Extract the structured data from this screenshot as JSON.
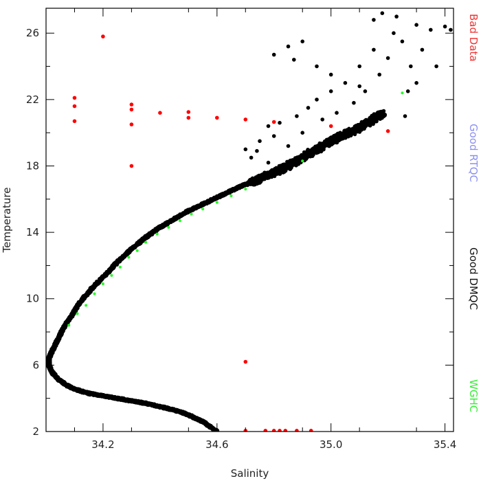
{
  "chart_data": {
    "type": "scatter",
    "title": "",
    "xlabel": "Salinity",
    "ylabel": "Temperature",
    "xlim": [
      34.0,
      35.43
    ],
    "ylim": [
      2,
      27.5
    ],
    "x_ticks": [
      34.2,
      34.6,
      35.0,
      35.4
    ],
    "x_tick_labels": [
      "34.2",
      "34.6",
      "35.0",
      "35.4"
    ],
    "y_ticks": [
      2,
      6,
      10,
      14,
      18,
      22,
      26
    ],
    "y_tick_labels": [
      "2",
      "6",
      "10",
      "14",
      "18",
      "22",
      "26"
    ],
    "grid": false,
    "legend_position": "right-vertical",
    "legend": [
      {
        "name": "Bad Data",
        "color": "#ee3333"
      },
      {
        "name": "Good RTQC",
        "color": "#8a8ff0"
      },
      {
        "name": "Good DMQC",
        "color": "#111111"
      },
      {
        "name": "WGHC",
        "color": "#33ee33"
      }
    ],
    "series": [
      {
        "name": "Good DMQC",
        "color": "#000000",
        "curve": [
          [
            34.6,
            2.0
          ],
          [
            34.55,
            2.6
          ],
          [
            34.5,
            3.0
          ],
          [
            34.45,
            3.3
          ],
          [
            34.4,
            3.5
          ],
          [
            34.35,
            3.7
          ],
          [
            34.3,
            3.85
          ],
          [
            34.25,
            4.0
          ],
          [
            34.2,
            4.15
          ],
          [
            34.15,
            4.3
          ],
          [
            34.1,
            4.55
          ],
          [
            34.07,
            4.8
          ],
          [
            34.04,
            5.2
          ],
          [
            34.02,
            5.6
          ],
          [
            34.01,
            6.0
          ],
          [
            34.01,
            6.4
          ],
          [
            34.02,
            6.8
          ],
          [
            34.04,
            7.5
          ],
          [
            34.06,
            8.2
          ],
          [
            34.09,
            9.0
          ],
          [
            34.12,
            9.8
          ],
          [
            34.16,
            10.6
          ],
          [
            34.2,
            11.3
          ],
          [
            34.25,
            12.2
          ],
          [
            34.3,
            13.0
          ],
          [
            34.35,
            13.7
          ],
          [
            34.4,
            14.3
          ],
          [
            34.45,
            14.8
          ],
          [
            34.5,
            15.3
          ],
          [
            34.55,
            15.7
          ],
          [
            34.6,
            16.1
          ],
          [
            34.65,
            16.5
          ],
          [
            34.7,
            16.9
          ],
          [
            34.75,
            17.2
          ],
          [
            34.8,
            17.6
          ],
          [
            34.85,
            18.0
          ],
          [
            34.9,
            18.5
          ],
          [
            34.95,
            19.0
          ],
          [
            35.0,
            19.5
          ],
          [
            35.05,
            19.9
          ],
          [
            35.1,
            20.3
          ],
          [
            35.15,
            20.8
          ],
          [
            35.18,
            21.2
          ]
        ],
        "scatter": [
          [
            34.7,
            19.0
          ],
          [
            34.72,
            18.5
          ],
          [
            34.75,
            19.5
          ],
          [
            34.78,
            18.2
          ],
          [
            34.8,
            19.8
          ],
          [
            34.82,
            20.6
          ],
          [
            34.85,
            19.2
          ],
          [
            34.88,
            21.0
          ],
          [
            34.9,
            20.0
          ],
          [
            34.92,
            21.5
          ],
          [
            34.95,
            22.0
          ],
          [
            34.97,
            20.8
          ],
          [
            35.0,
            22.5
          ],
          [
            35.02,
            21.2
          ],
          [
            35.05,
            23.0
          ],
          [
            35.08,
            21.8
          ],
          [
            35.1,
            24.0
          ],
          [
            35.12,
            22.5
          ],
          [
            35.15,
            25.0
          ],
          [
            35.17,
            23.5
          ],
          [
            35.2,
            24.5
          ],
          [
            35.22,
            26.0
          ],
          [
            35.25,
            25.5
          ],
          [
            35.28,
            24.0
          ],
          [
            35.3,
            26.5
          ],
          [
            35.32,
            25.0
          ],
          [
            35.35,
            26.2
          ],
          [
            34.8,
            24.7
          ],
          [
            34.87,
            24.4
          ],
          [
            34.95,
            24.0
          ],
          [
            35.18,
            27.2
          ],
          [
            35.23,
            27.0
          ],
          [
            35.3,
            23.0
          ],
          [
            35.27,
            22.5
          ],
          [
            35.26,
            21.0
          ],
          [
            35.4,
            26.4
          ],
          [
            35.42,
            26.2
          ],
          [
            35.37,
            24.0
          ],
          [
            34.85,
            25.2
          ],
          [
            34.9,
            25.5
          ],
          [
            35.0,
            23.5
          ],
          [
            35.1,
            22.8
          ],
          [
            35.15,
            26.8
          ],
          [
            34.78,
            20.4
          ],
          [
            34.74,
            18.9
          ]
        ]
      },
      {
        "name": "Bad Data",
        "color": "#ff0000",
        "points": [
          [
            34.1,
            22.1
          ],
          [
            34.1,
            21.6
          ],
          [
            34.1,
            20.7
          ],
          [
            34.2,
            25.8
          ],
          [
            34.3,
            21.7
          ],
          [
            34.3,
            21.4
          ],
          [
            34.3,
            20.5
          ],
          [
            34.3,
            18.0
          ],
          [
            34.4,
            21.2
          ],
          [
            34.5,
            21.25
          ],
          [
            34.5,
            20.9
          ],
          [
            34.6,
            20.9
          ],
          [
            34.7,
            20.8
          ],
          [
            34.8,
            20.65
          ],
          [
            35.0,
            20.4
          ],
          [
            35.2,
            20.1
          ],
          [
            34.7,
            6.2
          ],
          [
            34.7,
            2.05
          ],
          [
            34.77,
            2.05
          ],
          [
            34.8,
            2.05
          ],
          [
            34.82,
            2.05
          ],
          [
            34.84,
            2.05
          ],
          [
            34.88,
            2.05
          ],
          [
            34.93,
            2.05
          ]
        ]
      },
      {
        "name": "WGHC",
        "color": "#22ff22",
        "points": [
          [
            34.08,
            8.4
          ],
          [
            34.11,
            9.1
          ],
          [
            34.14,
            9.6
          ],
          [
            34.17,
            10.3
          ],
          [
            34.2,
            10.9
          ],
          [
            34.23,
            11.4
          ],
          [
            34.26,
            11.9
          ],
          [
            34.29,
            12.5
          ],
          [
            34.32,
            12.9
          ],
          [
            34.35,
            13.4
          ],
          [
            34.39,
            13.9
          ],
          [
            34.43,
            14.3
          ],
          [
            34.47,
            14.7
          ],
          [
            34.51,
            15.1
          ],
          [
            34.55,
            15.4
          ],
          [
            34.6,
            15.8
          ],
          [
            34.65,
            16.2
          ],
          [
            34.7,
            16.6
          ],
          [
            34.9,
            18.3
          ],
          [
            35.25,
            22.4
          ]
        ]
      }
    ]
  }
}
